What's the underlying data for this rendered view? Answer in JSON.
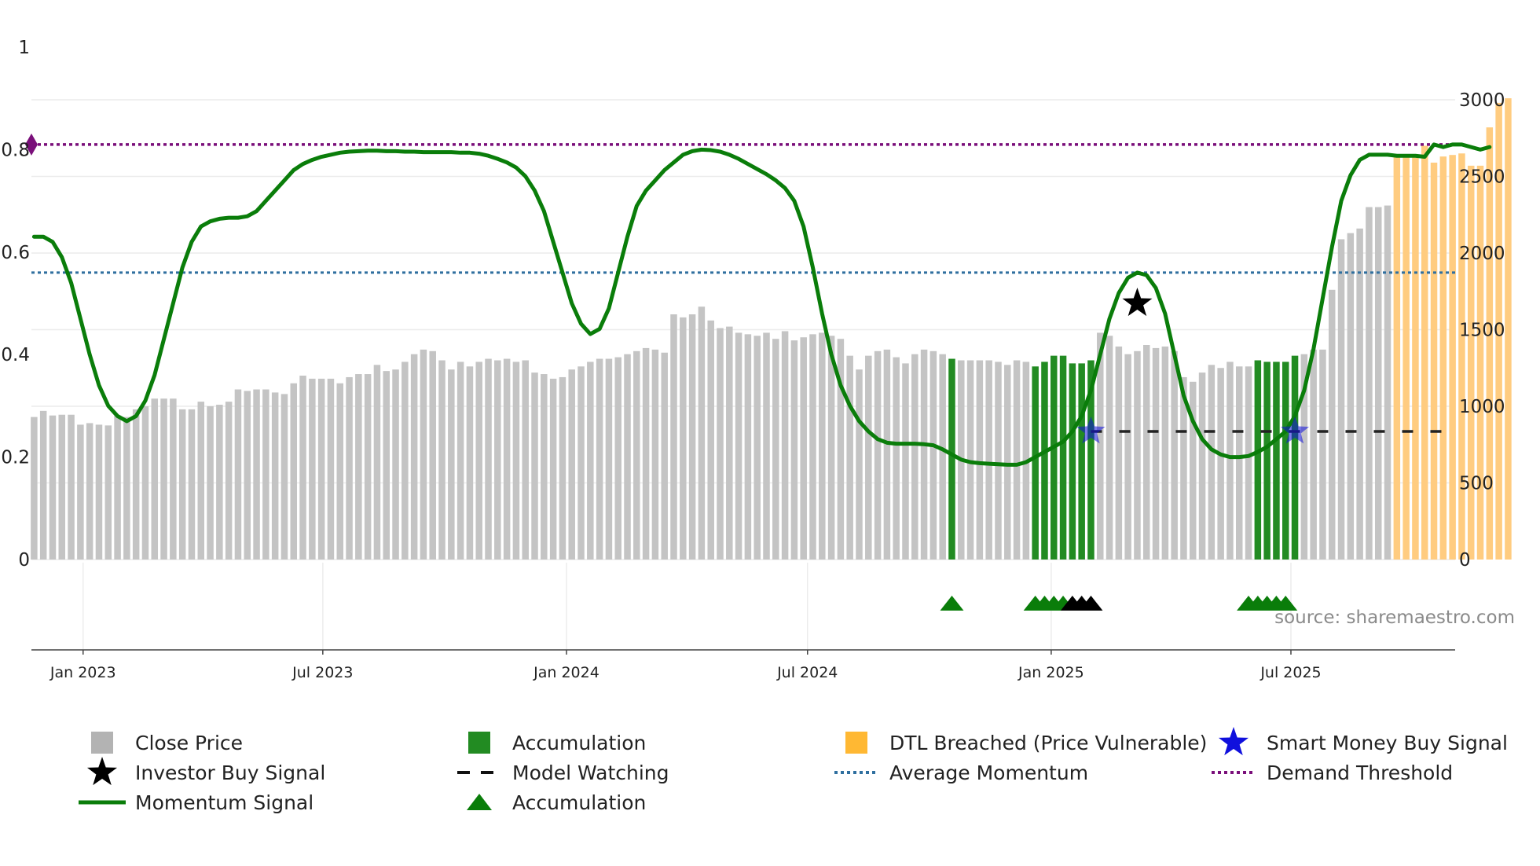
{
  "chart_data": {
    "type": "bar",
    "title": "",
    "source": "source: sharemaestro.com",
    "x_ticks": [
      {
        "date": "2023-01-01",
        "label": "Jan 2023"
      },
      {
        "date": "2023-07-01",
        "label": "Jul 2023"
      },
      {
        "date": "2024-01-01",
        "label": "Jan 2024"
      },
      {
        "date": "2024-07-01",
        "label": "Jul 2024"
      },
      {
        "date": "2025-01-01",
        "label": "Jan 2025"
      },
      {
        "date": "2025-07-01",
        "label": "Jul 2025"
      }
    ],
    "x_range": [
      "2022-11-23",
      "2025-11-02"
    ],
    "left_axis": {
      "ylim": [
        0,
        1
      ],
      "ticks": [
        {
          "value": 0,
          "label": "0"
        },
        {
          "value": 0.2,
          "label": "0.2"
        },
        {
          "value": 0.4,
          "label": "0.4"
        },
        {
          "value": 0.6,
          "label": "0.6"
        },
        {
          "value": 0.8,
          "label": "0.8"
        },
        {
          "value": 1,
          "label": "1"
        }
      ]
    },
    "right_axis": {
      "ylim": [
        0,
        3000
      ],
      "ticks": [
        {
          "value": 0,
          "label": "0"
        },
        {
          "value": 500,
          "label": "500"
        },
        {
          "value": 1000,
          "label": "1000"
        },
        {
          "value": 1500,
          "label": "1500"
        },
        {
          "value": 2000,
          "label": "2000"
        },
        {
          "value": 2500,
          "label": "2500"
        },
        {
          "value": 3000,
          "label": "3000"
        }
      ]
    },
    "close_price": {
      "start_date": "2022-11-25",
      "interval_days": 7,
      "values": [
        930,
        970,
        940,
        945,
        945,
        880,
        890,
        880,
        875,
        940,
        930,
        980,
        1000,
        1050,
        1050,
        1050,
        980,
        980,
        1030,
        1000,
        1010,
        1030,
        1110,
        1100,
        1110,
        1110,
        1090,
        1080,
        1150,
        1200,
        1180,
        1180,
        1180,
        1150,
        1190,
        1210,
        1210,
        1270,
        1230,
        1240,
        1290,
        1340,
        1370,
        1360,
        1300,
        1240,
        1290,
        1260,
        1290,
        1310,
        1300,
        1310,
        1290,
        1300,
        1220,
        1210,
        1180,
        1190,
        1240,
        1260,
        1290,
        1310,
        1310,
        1320,
        1340,
        1360,
        1380,
        1370,
        1350,
        1600,
        1580,
        1600,
        1650,
        1560,
        1510,
        1520,
        1480,
        1470,
        1460,
        1480,
        1440,
        1490,
        1430,
        1450,
        1470,
        1480,
        1460,
        1440,
        1330,
        1240,
        1330,
        1360,
        1370,
        1320,
        1280,
        1340,
        1370,
        1360,
        1340,
        1310,
        1300,
        1300,
        1300,
        1300,
        1290,
        1270,
        1300,
        1290,
        1260,
        1290,
        1330,
        1330,
        1280,
        1280,
        1300,
        1480,
        1460,
        1390,
        1340,
        1360,
        1400,
        1380,
        1390,
        1360,
        1190,
        1160,
        1220,
        1270,
        1250,
        1290,
        1260,
        1260,
        1300,
        1290,
        1290,
        1290,
        1330,
        1340,
        1370,
        1370,
        1760,
        2090,
        2130,
        2160,
        2300,
        2300,
        2310,
        2630,
        2640,
        2640,
        2700,
        2590,
        2630,
        2640,
        2650,
        2570,
        2570,
        2820,
        2980,
        3010
      ]
    },
    "accumulation_weeks": [
      99,
      108,
      109,
      110,
      111,
      112,
      113,
      114,
      132,
      133,
      134,
      135,
      136
    ],
    "dtl_breached_from_week": 147,
    "momentum": {
      "start_date": "2022-11-25",
      "interval_days": 7,
      "values": [
        0.63,
        0.63,
        0.62,
        0.59,
        0.54,
        0.47,
        0.4,
        0.34,
        0.3,
        0.28,
        0.27,
        0.28,
        0.31,
        0.36,
        0.43,
        0.5,
        0.57,
        0.62,
        0.65,
        0.66,
        0.665,
        0.667,
        0.667,
        0.67,
        0.68,
        0.7,
        0.72,
        0.74,
        0.76,
        0.772,
        0.78,
        0.786,
        0.79,
        0.794,
        0.796,
        0.797,
        0.798,
        0.798,
        0.797,
        0.797,
        0.796,
        0.796,
        0.795,
        0.795,
        0.795,
        0.795,
        0.794,
        0.794,
        0.792,
        0.788,
        0.782,
        0.775,
        0.765,
        0.748,
        0.72,
        0.68,
        0.62,
        0.56,
        0.5,
        0.46,
        0.44,
        0.45,
        0.49,
        0.56,
        0.63,
        0.69,
        0.72,
        0.74,
        0.76,
        0.775,
        0.79,
        0.797,
        0.8,
        0.799,
        0.796,
        0.79,
        0.782,
        0.772,
        0.762,
        0.752,
        0.74,
        0.725,
        0.7,
        0.65,
        0.57,
        0.48,
        0.4,
        0.34,
        0.3,
        0.27,
        0.25,
        0.235,
        0.228,
        0.226,
        0.226,
        0.226,
        0.225,
        0.223,
        0.215,
        0.205,
        0.195,
        0.19,
        0.188,
        0.187,
        0.186,
        0.185,
        0.185,
        0.19,
        0.2,
        0.21,
        0.22,
        0.23,
        0.25,
        0.28,
        0.33,
        0.4,
        0.47,
        0.52,
        0.55,
        0.56,
        0.555,
        0.53,
        0.48,
        0.4,
        0.32,
        0.27,
        0.235,
        0.215,
        0.205,
        0.2,
        0.2,
        0.202,
        0.21,
        0.22,
        0.235,
        0.25,
        0.28,
        0.33,
        0.41,
        0.51,
        0.61,
        0.7,
        0.75,
        0.78,
        0.79,
        0.79,
        0.79,
        0.788,
        0.788,
        0.788,
        0.786,
        0.81,
        0.805,
        0.81,
        0.81,
        0.805,
        0.8,
        0.805
      ]
    },
    "average_momentum": 0.56,
    "demand_threshold": 0.81,
    "model_watching": {
      "start_week": 114,
      "value": 0.25
    },
    "smart_money_buy_signals": [
      {
        "week": 114,
        "value": 0.25
      },
      {
        "week": 136,
        "value": 0.25
      }
    ],
    "investor_buy_signals": [
      {
        "week": 119,
        "value": 0.5
      }
    ],
    "accumulation_markers": [
      {
        "week": 99,
        "type": "accumulation"
      },
      {
        "week": 108,
        "type": "accumulation"
      },
      {
        "week": 109,
        "type": "accumulation"
      },
      {
        "week": 110,
        "type": "accumulation"
      },
      {
        "week": 111,
        "type": "accumulation"
      },
      {
        "week": 112,
        "type": "investor"
      },
      {
        "week": 113,
        "type": "investor"
      },
      {
        "week": 114,
        "type": "investor"
      },
      {
        "week": 131,
        "type": "accumulation"
      },
      {
        "week": 132,
        "type": "accumulation"
      },
      {
        "week": 133,
        "type": "accumulation"
      },
      {
        "week": 134,
        "type": "accumulation"
      },
      {
        "week": 135,
        "type": "accumulation"
      }
    ],
    "colors": {
      "close_price": "#c4c4c4",
      "accumulation": "#228b22",
      "dtl_breached": "#ffcc80",
      "momentum": "#0a7d0a",
      "average_momentum": "#2f6f9f",
      "demand_threshold": "#7a0f7a",
      "model_watching": "#222222",
      "smart_money": "#1010dd",
      "investor": "#000000"
    },
    "legend": [
      {
        "key": "close_price",
        "label": "Close Price",
        "symbol": "square",
        "color": "#b3b3b3"
      },
      {
        "key": "accumulation_bar",
        "label": "Accumulation",
        "symbol": "square",
        "color": "#228b22"
      },
      {
        "key": "dtl_breached",
        "label": "DTL Breached (Price Vulnerable)",
        "symbol": "square",
        "color": "#ffb833"
      },
      {
        "key": "smart_money",
        "label": "Smart Money Buy Signal",
        "symbol": "star",
        "color": "#1010dd"
      },
      {
        "key": "investor",
        "label": "Investor Buy Signal",
        "symbol": "star",
        "color": "#000000"
      },
      {
        "key": "model_watching",
        "label": "Model Watching",
        "symbol": "dash",
        "color": "#111111"
      },
      {
        "key": "average_momentum",
        "label": "Average Momentum",
        "symbol": "dot",
        "color": "#2f6f9f"
      },
      {
        "key": "demand_threshold",
        "label": "Demand Threshold",
        "symbol": "dot",
        "color": "#7a0f7a"
      },
      {
        "key": "momentum",
        "label": "Momentum Signal",
        "symbol": "line",
        "color": "#0a7d0a"
      },
      {
        "key": "accumulation_marker",
        "label": "Accumulation",
        "symbol": "triangle",
        "color": "#0a7d0a"
      }
    ]
  }
}
